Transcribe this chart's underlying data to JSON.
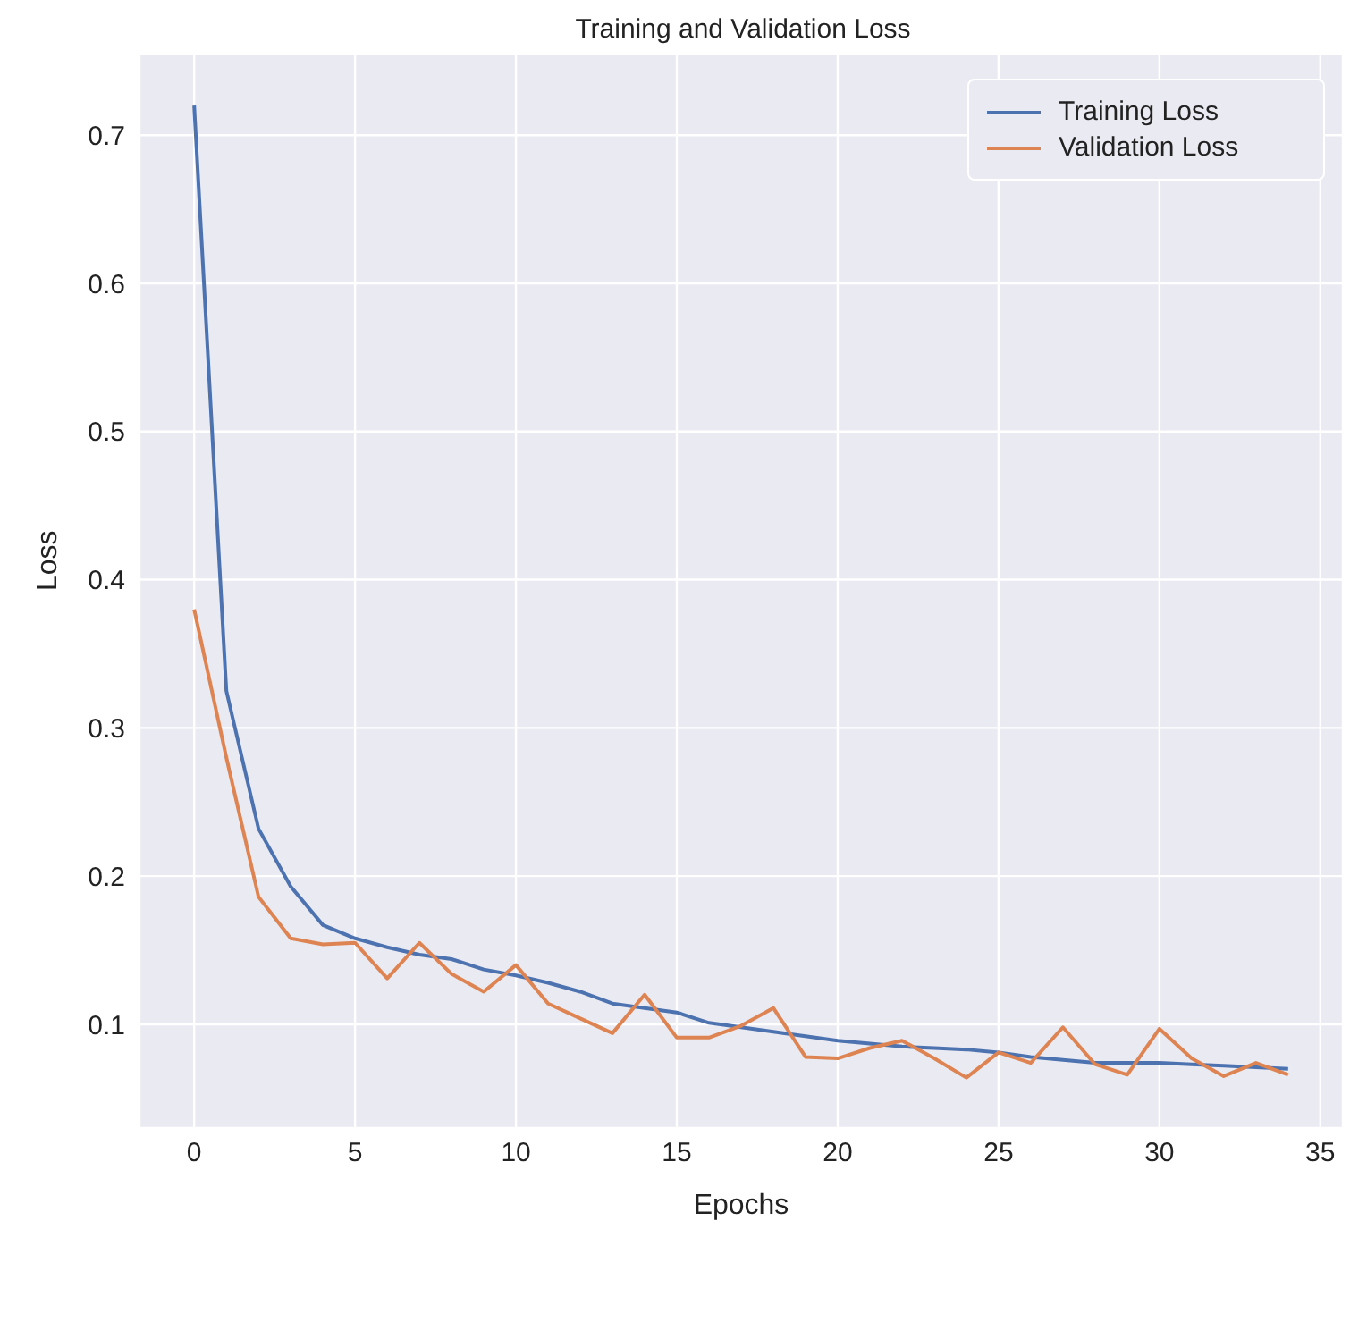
{
  "chart_data": {
    "type": "line",
    "title": "Training and Validation Loss",
    "xlabel": "Epochs",
    "ylabel": "Loss",
    "x": [
      0,
      1,
      2,
      3,
      4,
      5,
      6,
      7,
      8,
      9,
      10,
      11,
      12,
      13,
      14,
      15,
      16,
      17,
      18,
      19,
      20,
      21,
      22,
      23,
      24,
      25,
      26,
      27,
      28,
      29,
      30,
      31,
      32,
      33,
      34
    ],
    "series": [
      {
        "name": "Training Loss",
        "color": "#4c72b0",
        "values": [
          0.72,
          0.325,
          0.232,
          0.193,
          0.167,
          0.158,
          0.152,
          0.147,
          0.144,
          0.137,
          0.133,
          0.128,
          0.122,
          0.114,
          0.111,
          0.108,
          0.101,
          0.098,
          0.095,
          0.092,
          0.089,
          0.087,
          0.085,
          0.084,
          0.083,
          0.081,
          0.078,
          0.076,
          0.074,
          0.074,
          0.074,
          0.073,
          0.072,
          0.071,
          0.07
        ]
      },
      {
        "name": "Validation Loss",
        "color": "#dd8452",
        "values": [
          0.38,
          0.28,
          0.186,
          0.158,
          0.154,
          0.155,
          0.131,
          0.155,
          0.134,
          0.122,
          0.14,
          0.114,
          0.104,
          0.094,
          0.12,
          0.091,
          0.091,
          0.099,
          0.111,
          0.078,
          0.077,
          0.084,
          0.089,
          0.077,
          0.064,
          0.081,
          0.074,
          0.098,
          0.073,
          0.066,
          0.097,
          0.077,
          0.065,
          0.074,
          0.066
        ]
      }
    ],
    "xlim": [
      -1.7,
      35.7
    ],
    "xticks": [
      0,
      5,
      10,
      15,
      20,
      25,
      30,
      35
    ],
    "ylim": [
      0.03,
      0.755
    ],
    "yticks": [
      0.1,
      0.2,
      0.3,
      0.4,
      0.5,
      0.6,
      0.7
    ],
    "grid": true,
    "legend": "top right",
    "marker": "none",
    "line_style": "solid"
  }
}
